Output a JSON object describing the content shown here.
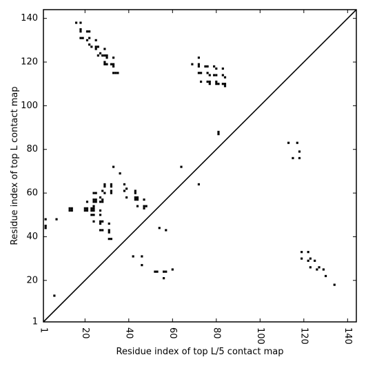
{
  "chart_data": {
    "type": "scatter",
    "title": "",
    "xlabel": "Residue index of top L/5 contact map",
    "ylabel": "Residue index of top L contact map",
    "xlim": [
      1,
      144
    ],
    "ylim": [
      1,
      144
    ],
    "x_ticks": [
      1,
      20,
      40,
      60,
      80,
      100,
      120,
      140
    ],
    "y_ticks": [
      1,
      20,
      40,
      60,
      80,
      100,
      120,
      140
    ],
    "grid": false,
    "legend": "none",
    "diagonal_line": true,
    "marker_color": "#000000",
    "points_top_L": [
      [
        16,
        138
      ],
      [
        18,
        138
      ],
      [
        18,
        135
      ],
      [
        18,
        134
      ],
      [
        18,
        131
      ],
      [
        19,
        131
      ],
      [
        21,
        134
      ],
      [
        22,
        134
      ],
      [
        21,
        130
      ],
      [
        22,
        131
      ],
      [
        22,
        128
      ],
      [
        23,
        127
      ],
      [
        25,
        130
      ],
      [
        25,
        127
      ],
      [
        26,
        127
      ],
      [
        25,
        126
      ],
      [
        26,
        123
      ],
      [
        27,
        124
      ],
      [
        28,
        123
      ],
      [
        29,
        126
      ],
      [
        29,
        123
      ],
      [
        30,
        123
      ],
      [
        30,
        122
      ],
      [
        29,
        120
      ],
      [
        30,
        119
      ],
      [
        29,
        119
      ],
      [
        32,
        119
      ],
      [
        33,
        119
      ],
      [
        33,
        122
      ],
      [
        33,
        118
      ],
      [
        33,
        115
      ],
      [
        34,
        115
      ],
      [
        35,
        115
      ],
      [
        69,
        119
      ],
      [
        72,
        122
      ],
      [
        72,
        119
      ],
      [
        72,
        118
      ],
      [
        72,
        115
      ],
      [
        73,
        115
      ],
      [
        73,
        111
      ],
      [
        75,
        118
      ],
      [
        76,
        118
      ],
      [
        76,
        115
      ],
      [
        76,
        111
      ],
      [
        77,
        114
      ],
      [
        77,
        111
      ],
      [
        77,
        110
      ],
      [
        79,
        118
      ],
      [
        79,
        114
      ],
      [
        80,
        114
      ],
      [
        80,
        117
      ],
      [
        80,
        111
      ],
      [
        80,
        110
      ],
      [
        81,
        110
      ],
      [
        83,
        117
      ],
      [
        83,
        114
      ],
      [
        84,
        113
      ],
      [
        83,
        110
      ],
      [
        84,
        109
      ],
      [
        84,
        110
      ],
      [
        81,
        88
      ],
      [
        81,
        87
      ],
      [
        113,
        83
      ],
      [
        115,
        76
      ],
      [
        117,
        83
      ],
      [
        118,
        79
      ],
      [
        118,
        76
      ],
      [
        119,
        33
      ],
      [
        119,
        30
      ],
      [
        122,
        33
      ],
      [
        122,
        29
      ],
      [
        123,
        30
      ],
      [
        123,
        26
      ],
      [
        125,
        29
      ],
      [
        126,
        25
      ],
      [
        127,
        26
      ],
      [
        129,
        25
      ],
      [
        130,
        22
      ],
      [
        134,
        18
      ]
    ],
    "points_top_L5": [
      [
        6,
        13
      ],
      [
        2,
        48
      ],
      [
        2,
        45
      ],
      [
        2,
        44
      ],
      [
        7,
        48
      ],
      [
        13,
        53
      ],
      [
        14,
        53
      ],
      [
        13,
        52
      ],
      [
        14,
        52
      ],
      [
        20,
        53
      ],
      [
        21,
        53
      ],
      [
        20,
        52
      ],
      [
        21,
        52
      ],
      [
        21,
        56
      ],
      [
        23,
        53
      ],
      [
        24,
        53
      ],
      [
        23,
        52
      ],
      [
        24,
        52
      ],
      [
        24,
        54
      ],
      [
        23,
        50
      ],
      [
        24,
        50
      ],
      [
        24,
        47
      ],
      [
        24,
        57
      ],
      [
        25,
        57
      ],
      [
        24,
        56
      ],
      [
        25,
        56
      ],
      [
        24,
        60
      ],
      [
        25,
        60
      ],
      [
        27,
        58
      ],
      [
        28,
        57
      ],
      [
        27,
        56
      ],
      [
        28,
        56
      ],
      [
        28,
        61
      ],
      [
        29,
        60
      ],
      [
        29,
        64
      ],
      [
        29,
        63
      ],
      [
        27,
        52
      ],
      [
        27,
        50
      ],
      [
        27,
        47
      ],
      [
        28,
        47
      ],
      [
        27,
        46
      ],
      [
        27,
        43
      ],
      [
        28,
        43
      ],
      [
        31,
        46
      ],
      [
        31,
        43
      ],
      [
        31,
        42
      ],
      [
        31,
        39
      ],
      [
        32,
        39
      ],
      [
        32,
        64
      ],
      [
        32,
        63
      ],
      [
        32,
        61
      ],
      [
        32,
        60
      ],
      [
        33,
        72
      ],
      [
        36,
        69
      ],
      [
        38,
        64
      ],
      [
        38,
        61
      ],
      [
        39,
        62
      ],
      [
        39,
        58
      ],
      [
        42,
        31
      ],
      [
        43,
        61
      ],
      [
        43,
        60
      ],
      [
        43,
        58
      ],
      [
        44,
        58
      ],
      [
        43,
        57
      ],
      [
        44,
        57
      ],
      [
        44,
        54
      ],
      [
        46,
        31
      ],
      [
        46,
        27
      ],
      [
        47,
        57
      ],
      [
        47,
        54
      ],
      [
        48,
        54
      ],
      [
        47,
        53
      ],
      [
        52,
        24
      ],
      [
        53,
        24
      ],
      [
        54,
        44
      ],
      [
        56,
        21
      ],
      [
        56,
        24
      ],
      [
        57,
        24
      ],
      [
        57,
        43
      ],
      [
        60,
        25
      ],
      [
        64,
        72
      ],
      [
        72,
        64
      ]
    ]
  }
}
